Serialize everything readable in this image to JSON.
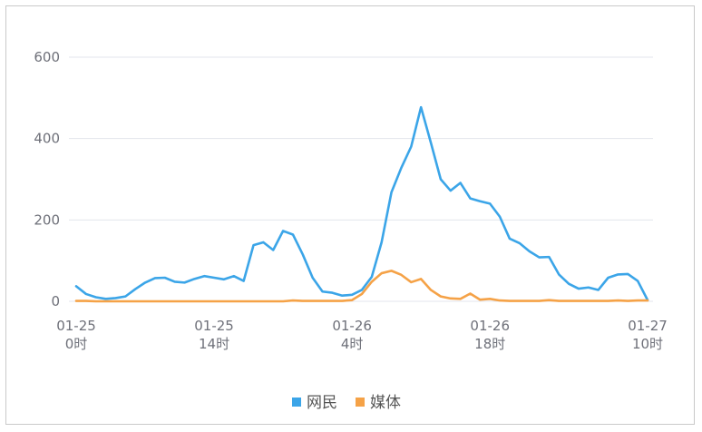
{
  "chart_data": {
    "type": "line",
    "title": "",
    "xlabel": "",
    "ylabel": "",
    "ylim": [
      0,
      600
    ],
    "y_ticks": [
      0,
      200,
      400,
      600
    ],
    "x_tick_labels": [
      {
        "index": 0,
        "date": "01-25",
        "hour": "0时"
      },
      {
        "index": 14,
        "date": "01-25",
        "hour": "14时"
      },
      {
        "index": 28,
        "date": "01-26",
        "hour": "4时"
      },
      {
        "index": 42,
        "date": "01-26",
        "hour": "18时"
      },
      {
        "index": 58,
        "date": "01-27",
        "hour": "10时"
      }
    ],
    "grid": "horizontal",
    "legend_position": "bottom-center",
    "series": [
      {
        "name": "网民",
        "color": "#3ba5e8",
        "values": [
          37,
          18,
          10,
          6,
          8,
          12,
          30,
          46,
          57,
          58,
          48,
          46,
          55,
          62,
          58,
          54,
          62,
          50,
          138,
          145,
          126,
          173,
          164,
          115,
          58,
          24,
          21,
          14,
          16,
          28,
          60,
          145,
          268,
          328,
          380,
          477,
          390,
          300,
          272,
          291,
          253,
          246,
          240,
          208,
          154,
          143,
          123,
          108,
          109,
          66,
          43,
          31,
          34,
          28,
          58,
          66,
          67,
          50,
          3
        ]
      },
      {
        "name": "媒体",
        "color": "#f5a247",
        "values": [
          1,
          1,
          0,
          0,
          0,
          0,
          0,
          0,
          0,
          0,
          0,
          0,
          0,
          0,
          0,
          0,
          0,
          0,
          0,
          0,
          0,
          0,
          2,
          1,
          1,
          1,
          1,
          1,
          3,
          18,
          48,
          69,
          75,
          65,
          47,
          55,
          28,
          12,
          7,
          6,
          19,
          4,
          6,
          2,
          1,
          1,
          1,
          1,
          3,
          1,
          1,
          1,
          1,
          1,
          1,
          2,
          1,
          2,
          2
        ]
      }
    ]
  }
}
